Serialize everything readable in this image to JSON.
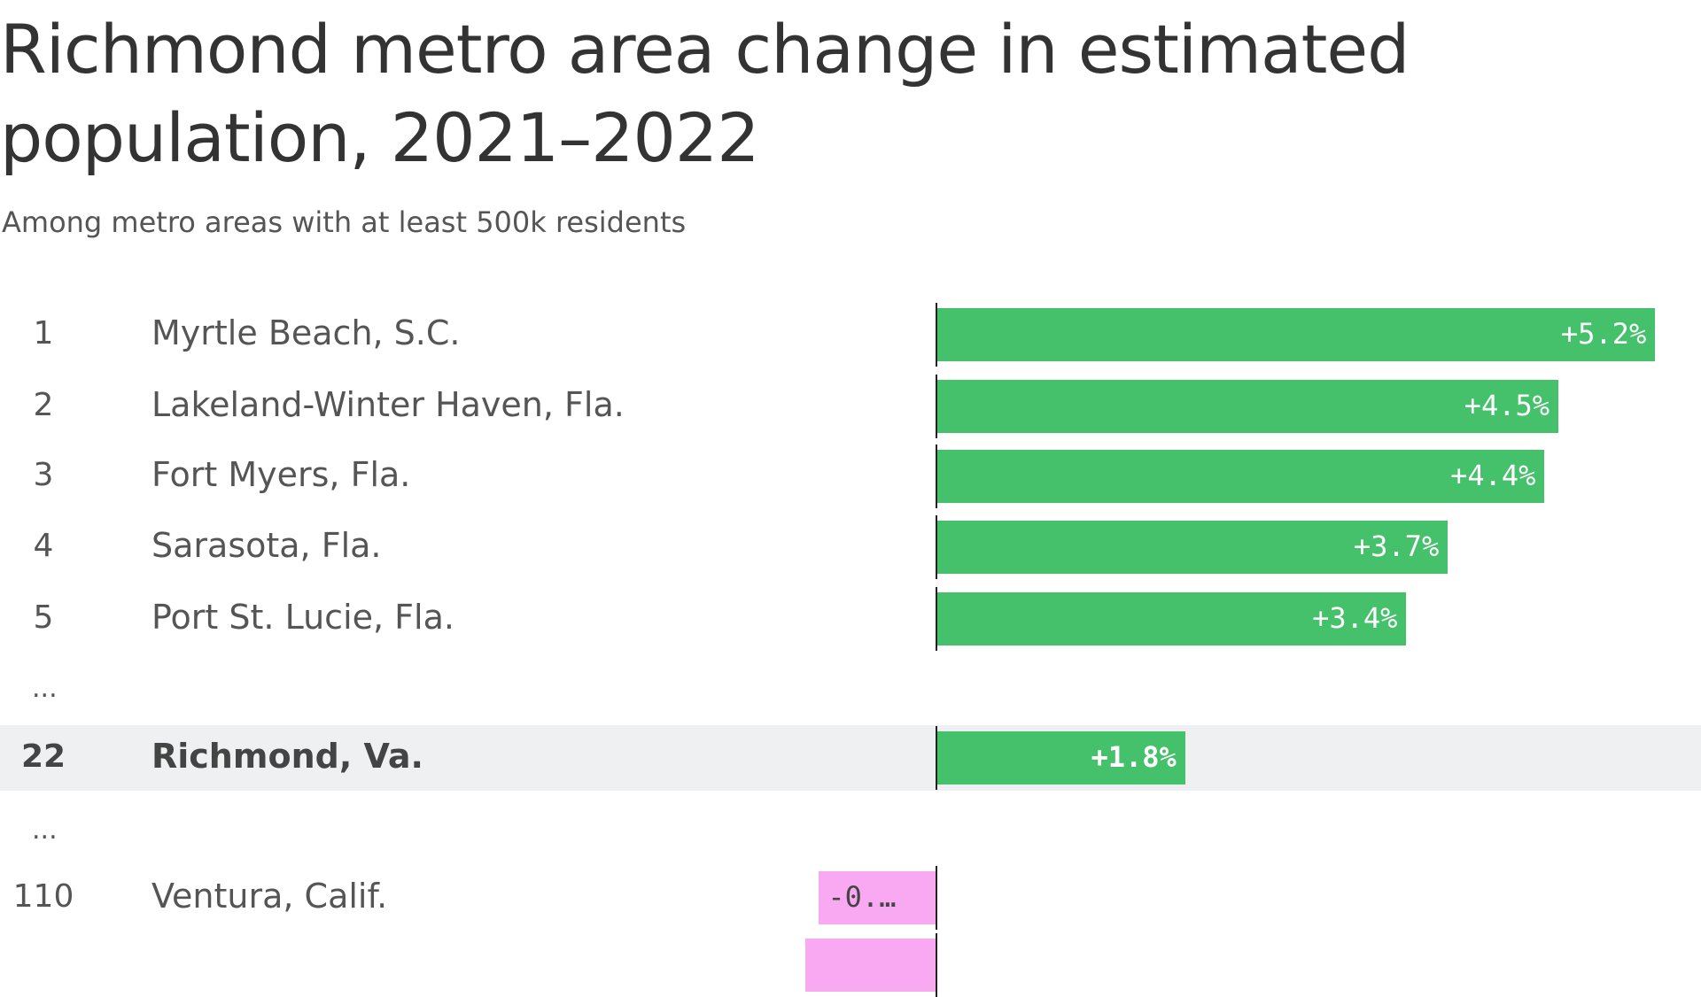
{
  "title": "Richmond metro area change in estimated population, 2021–2022",
  "subtitle": "Among metro areas with at least 500k residents",
  "colors": {
    "positive": "#44c16a",
    "negative": "#f9a8f2",
    "highlight_bg": "#eef0f2"
  },
  "chart_data": {
    "type": "bar",
    "orientation": "horizontal",
    "title": "Richmond metro area change in estimated population, 2021–2022",
    "subtitle": "Among metro areas with at least 500k residents",
    "ellipsis": "...",
    "rows": [
      {
        "rank": "1",
        "name": "Myrtle Beach, S.C.",
        "value": 5.2,
        "label": "+5.2%"
      },
      {
        "rank": "2",
        "name": "Lakeland-Winter Haven, Fla.",
        "value": 4.5,
        "label": "+4.5%"
      },
      {
        "rank": "3",
        "name": "Fort Myers, Fla.",
        "value": 4.4,
        "label": "+4.4%"
      },
      {
        "rank": "4",
        "name": "Sarasota, Fla.",
        "value": 3.7,
        "label": "+3.7%"
      },
      {
        "rank": "5",
        "name": "Port St. Lucie, Fla.",
        "value": 3.4,
        "label": "+3.4%"
      },
      {
        "gap": true
      },
      {
        "rank": "22",
        "name": "Richmond, Va.",
        "value": 1.8,
        "label": "+1.8%",
        "highlight": true
      },
      {
        "gap": true
      },
      {
        "rank": "110",
        "name": "Ventura, Calif.",
        "value": -0.85,
        "label": "-0.…"
      },
      {
        "rank": "",
        "name": "",
        "value": -0.95,
        "label": ""
      }
    ]
  }
}
